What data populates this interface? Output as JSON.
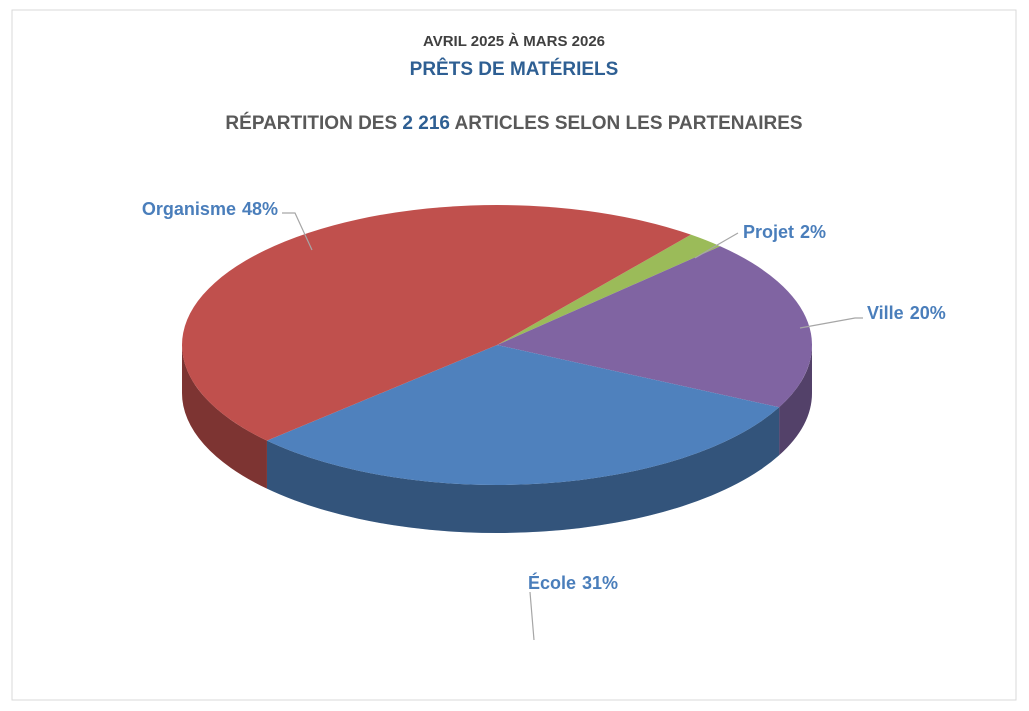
{
  "chart_data": {
    "type": "pie",
    "period": "AVRIL 2025 À MARS 2026",
    "title": "PRÊTS DE MATÉRIELS",
    "subtitle_parts": [
      "RÉPARTITION DES ",
      "2 216",
      " ARTICLES SELON LES PARTENAIRES"
    ],
    "categories": [
      "Projet",
      "Ville",
      "École",
      "Organisme"
    ],
    "values": [
      2,
      20,
      31,
      48
    ],
    "value_labels": [
      "2%",
      "20%",
      "31%",
      "48%"
    ],
    "colors": [
      "#9bbb59",
      "#8064a2",
      "#4f81bd",
      "#c0504d"
    ]
  }
}
